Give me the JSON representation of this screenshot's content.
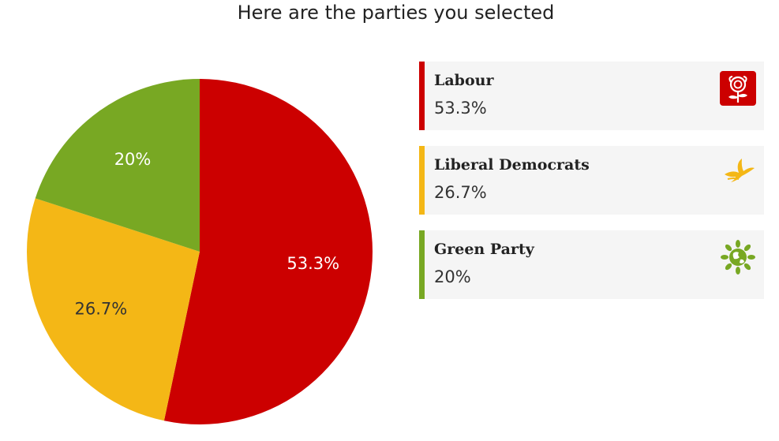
{
  "title": "Here are the parties you selected",
  "colors": {
    "labour": "#cc0000",
    "libdem": "#f4b716",
    "green": "#78a823"
  },
  "legend": [
    {
      "name": "Labour",
      "value": "53.3%",
      "color": "#cc0000",
      "icon": "labour-rose-icon"
    },
    {
      "name": "Liberal Democrats",
      "value": "26.7%",
      "color": "#f4b716",
      "icon": "libdem-bird-icon"
    },
    {
      "name": "Green Party",
      "value": "20%",
      "color": "#78a823",
      "icon": "green-globe-icon"
    }
  ],
  "chart_data": {
    "type": "pie",
    "title": "Here are the parties you selected",
    "categories": [
      "Labour",
      "Liberal Democrats",
      "Green Party"
    ],
    "values": [
      53.3,
      26.7,
      20
    ],
    "labels": [
      "53.3%",
      "26.7%",
      "20%"
    ],
    "colors": [
      "#cc0000",
      "#f4b716",
      "#78a823"
    ],
    "label_colors": [
      "#ffffff",
      "#333333",
      "#ffffff"
    ],
    "legend": "right"
  }
}
